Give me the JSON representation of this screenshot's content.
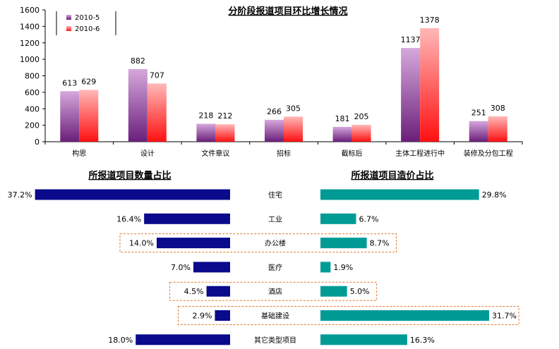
{
  "chart_data": [
    {
      "type": "bar",
      "title": "分阶段报道项目环比增长情况",
      "categories": [
        "构思",
        "设计",
        "文件章议",
        "招标",
        "截标后",
        "主体工程进行中",
        "装修及分包工程"
      ],
      "series": [
        {
          "name": "2010-5",
          "values": [
            613,
            882,
            218,
            266,
            181,
            1137,
            251
          ]
        },
        {
          "name": "2010-6",
          "values": [
            629,
            707,
            212,
            305,
            205,
            1378,
            308
          ]
        }
      ],
      "ylim": [
        0,
        1600
      ],
      "yticks": [
        0,
        200,
        400,
        600,
        800,
        1000,
        1200,
        1400,
        1600
      ],
      "legend": "top-left",
      "grid": false
    },
    {
      "type": "bar",
      "orientation": "horizontal",
      "title": "所报道项目数量占比",
      "categories": [
        "住宅",
        "工业",
        "办公楼",
        "医疗",
        "酒店",
        "基础建设",
        "其它类型项目"
      ],
      "values": [
        37.2,
        16.4,
        14.0,
        7.0,
        4.5,
        2.9,
        18.0
      ],
      "labels": [
        "37.2%",
        "16.4%",
        "14.0%",
        "7.0%",
        "4.5%",
        "2.9%",
        "18.0%"
      ]
    },
    {
      "type": "bar",
      "orientation": "horizontal",
      "title": "所报道项目造价占比",
      "categories": [
        "住宅",
        "工业",
        "办公楼",
        "医疗",
        "酒店",
        "基础建设",
        "其它类型项目"
      ],
      "values": [
        29.8,
        6.7,
        8.7,
        1.9,
        5.0,
        31.7,
        16.3
      ],
      "labels": [
        "29.8%",
        "6.7%",
        "8.7%",
        "1.9%",
        "5.0%",
        "31.7%",
        "16.3%"
      ]
    }
  ],
  "colors": {
    "s1_top": "#d6a8dc",
    "s1_bottom": "#6a1f7a",
    "s2_top": "#ffb8b8",
    "s2_bottom": "#ff1010",
    "count_bar": "#0a0a8c",
    "cost_bar": "#009b95",
    "highlight_border": "#e07a30"
  },
  "highlighted_categories": [
    "办公楼",
    "酒店",
    "基础建设"
  ]
}
